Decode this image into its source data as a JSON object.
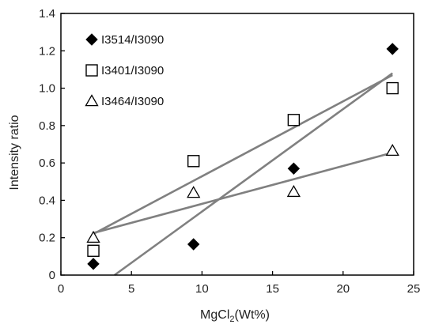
{
  "chart_data": {
    "type": "scatter",
    "xlabel": "MgCl",
    "xlabel_subscript": "2",
    "xlabel_suffix": "(Wt%)",
    "ylabel": "Intensity ratio",
    "xlim": [
      0,
      25
    ],
    "ylim": [
      0,
      1.4
    ],
    "xticks": [
      "0",
      "5",
      "10",
      "15",
      "20",
      "25"
    ],
    "yticks": [
      "0",
      "0.2",
      "0.4",
      "0.6",
      "0.8",
      "1.0",
      "1.2",
      "1.4"
    ],
    "grid": false,
    "legend_position": "top-left",
    "series": [
      {
        "name": "I3514/I3090",
        "marker": "diamond-filled",
        "x": [
          2.3,
          9.4,
          16.5,
          23.5
        ],
        "y": [
          0.06,
          0.165,
          0.57,
          1.21
        ],
        "fit": [
          [
            3.8,
            0.0
          ],
          [
            23.5,
            1.08
          ]
        ]
      },
      {
        "name": "I3401/I3090",
        "marker": "square-open",
        "x": [
          2.3,
          9.4,
          16.5,
          23.5
        ],
        "y": [
          0.13,
          0.61,
          0.83,
          1.0
        ],
        "fit": [
          [
            2.3,
            0.22
          ],
          [
            23.5,
            1.07
          ]
        ]
      },
      {
        "name": "I3464/I3090",
        "marker": "triangle-open",
        "x": [
          2.3,
          9.4,
          16.5,
          23.5
        ],
        "y": [
          0.2,
          0.44,
          0.445,
          0.665
        ],
        "fit": [
          [
            2.3,
            0.225
          ],
          [
            23.5,
            0.655
          ]
        ]
      }
    ],
    "colors": {
      "fit_line": "#808080",
      "marker": "#000000",
      "axis": "#000000"
    }
  }
}
